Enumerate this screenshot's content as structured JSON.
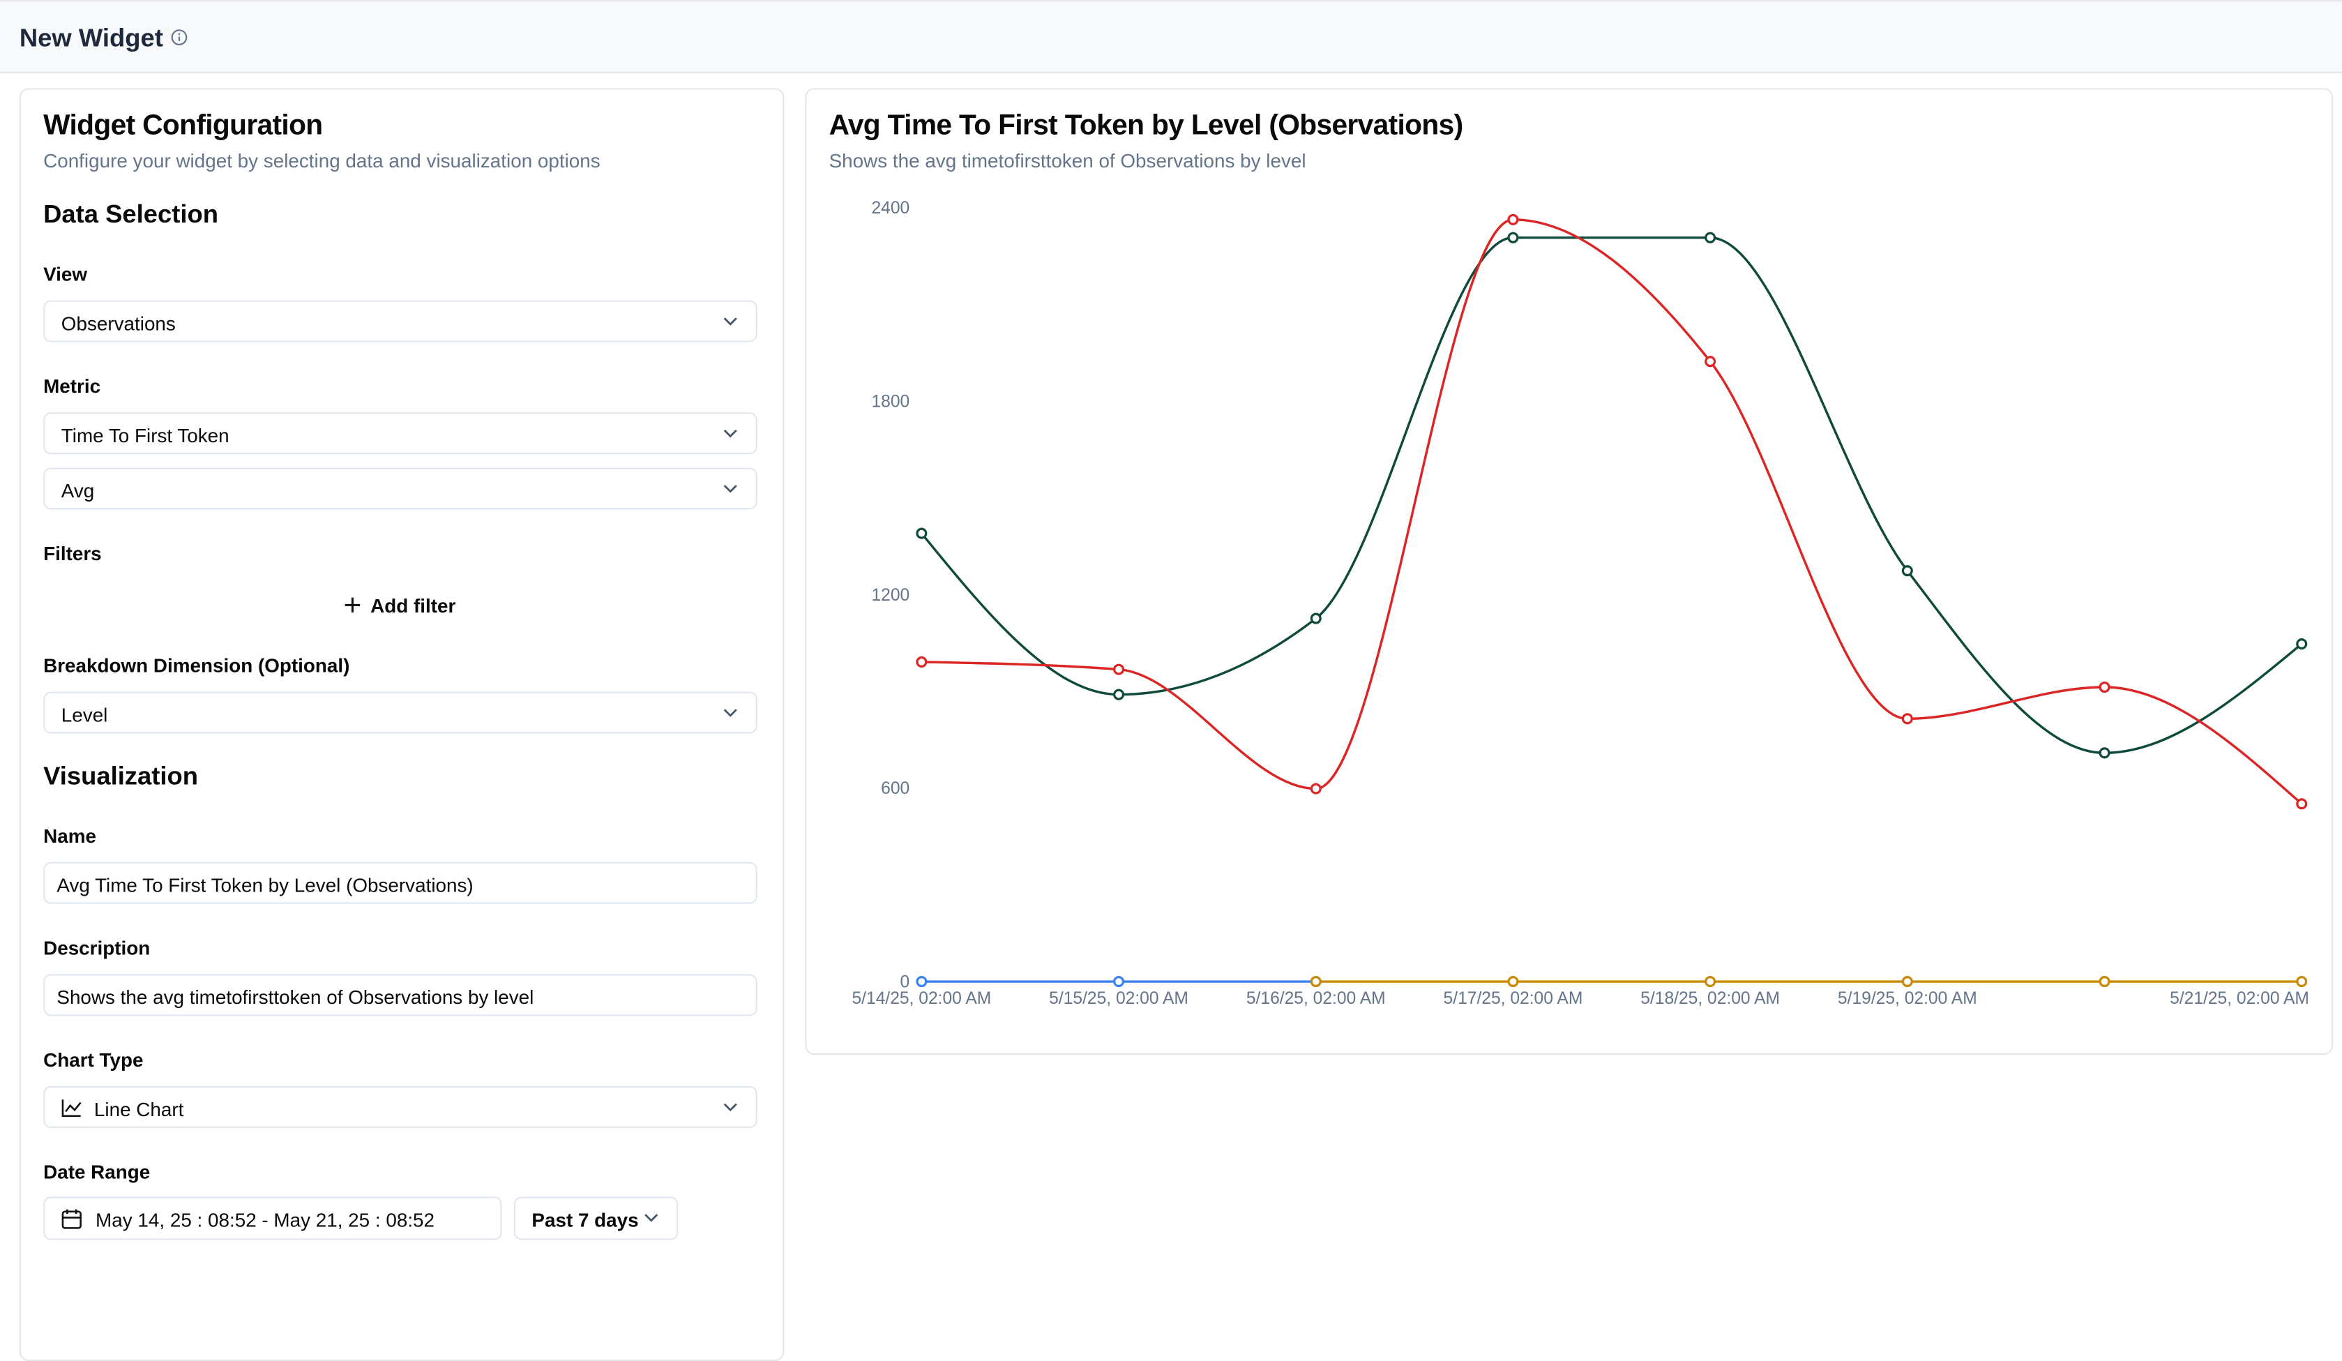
{
  "header": {
    "title": "New Widget"
  },
  "config": {
    "title": "Widget Configuration",
    "subtitle": "Configure your widget by selecting data and visualization options",
    "data_section": "Data Selection",
    "view_label": "View",
    "view_value": "Observations",
    "metric_label": "Metric",
    "metric_value": "Time To First Token",
    "aggregation_value": "Avg",
    "filters_label": "Filters",
    "add_filter": "Add filter",
    "breakdown_label": "Breakdown Dimension (Optional)",
    "breakdown_value": "Level",
    "viz_section": "Visualization",
    "name_label": "Name",
    "name_value": "Avg Time To First Token by Level (Observations)",
    "description_label": "Description",
    "description_value": "Shows the avg timetofirsttoken of Observations by level",
    "chart_type_label": "Chart Type",
    "chart_type_value": "Line Chart",
    "date_range_label": "Date Range",
    "date_range_value": "May 14, 25 : 08:52 - May 21, 25 : 08:52",
    "date_preset": "Past 7 days"
  },
  "chart_data": {
    "type": "line",
    "title": "Avg Time To First Token by Level (Observations)",
    "subtitle": "Shows the avg timetofirsttoken of Observations by level",
    "categories": [
      "5/14/25, 02:00 AM",
      "5/15/25, 02:00 AM",
      "5/16/25, 02:00 AM",
      "5/17/25, 02:00 AM",
      "5/18/25, 02:00 AM",
      "5/19/25, 02:00 AM",
      null,
      "5/21/25, 02:00 AM"
    ],
    "series": [
      {
        "color": "#0f4a3c",
        "values": [
          1390,
          890,
          1126,
          2307,
          2307,
          1274,
          709,
          1047
        ]
      },
      {
        "color": "#dc2626",
        "values": [
          991,
          968,
          598,
          2363,
          1923,
          815,
          913,
          551
        ]
      },
      {
        "color": "#3b82f6",
        "values": [
          0,
          0,
          0,
          null,
          null,
          null,
          0,
          null
        ]
      },
      {
        "color": "#ca8a04",
        "values": [
          null,
          null,
          0,
          0,
          0,
          0,
          0,
          0
        ]
      }
    ],
    "ylim": [
      0,
      2400
    ],
    "yticks": [
      0,
      600,
      1200,
      1800,
      2400
    ],
    "grid": false
  }
}
